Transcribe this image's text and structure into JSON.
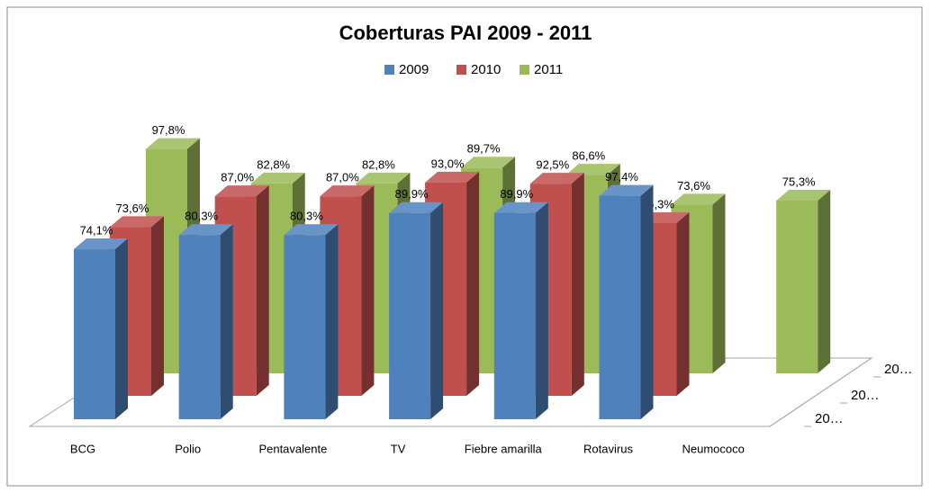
{
  "chart_data": {
    "type": "bar3d",
    "title": "Coberturas PAI 2009 - 2011",
    "categories": [
      "BCG",
      "Polio",
      "Pentavalente",
      "TV",
      "Fiebre amarilla",
      "Rotavirus",
      "Neumococo"
    ],
    "series": [
      {
        "name": "2009",
        "color": "#4f81bd",
        "values": [
          74.1,
          80.3,
          80.3,
          89.9,
          89.9,
          97.4,
          null
        ],
        "value_labels": [
          "74,1%",
          "80,3%",
          "80,3%",
          "89,9%",
          "89,9%",
          "97,4%",
          null
        ]
      },
      {
        "name": "2010",
        "color": "#c0504d",
        "values": [
          73.6,
          87.0,
          87.0,
          93.0,
          92.5,
          75.3,
          null
        ],
        "value_labels": [
          "73,6%",
          "87,0%",
          "87,0%",
          "93,0%",
          "92,5%",
          "75,3%",
          null
        ]
      },
      {
        "name": "2011",
        "color": "#9bbb59",
        "values": [
          97.8,
          82.8,
          82.8,
          89.7,
          86.6,
          73.6,
          75.3
        ],
        "value_labels": [
          "97,8%",
          "82,8%",
          "82,8%",
          "89,7%",
          "86,6%",
          "73,6%",
          "75,3%"
        ]
      }
    ],
    "depth_labels": [
      "20…",
      "20…",
      "20…"
    ],
    "legend": "top"
  }
}
